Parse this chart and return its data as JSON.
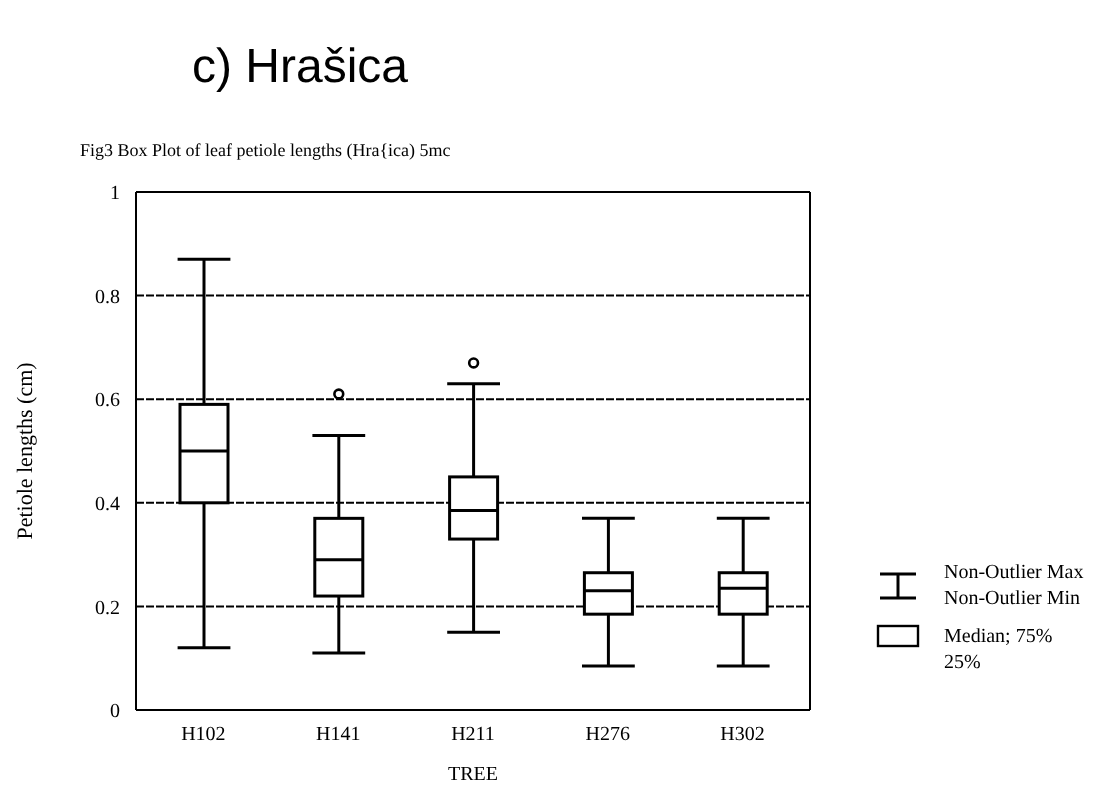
{
  "chart_data": {
    "type": "box",
    "title": "c) Hrašica",
    "subtitle": "Fig3  Box Plot of leaf petiole lengths (Hra{ica) 5mc",
    "xlabel": "TREE",
    "ylabel": "Petiole lengths (cm)",
    "categories": [
      "H102",
      "H141",
      "H211",
      "H276",
      "H302"
    ],
    "color": "#000000",
    "boxes": [
      {
        "low": 0.12,
        "q1": 0.4,
        "median": 0.5,
        "q3": 0.59,
        "high": 0.87
      },
      {
        "low": 0.11,
        "q1": 0.22,
        "median": 0.29,
        "q3": 0.37,
        "high": 0.53,
        "outliers": [
          0.61
        ]
      },
      {
        "low": 0.15,
        "q1": 0.33,
        "median": 0.385,
        "q3": 0.45,
        "high": 0.63,
        "outliers": [
          0.67
        ]
      },
      {
        "low": 0.085,
        "q1": 0.185,
        "median": 0.23,
        "q3": 0.265,
        "high": 0.37
      },
      {
        "low": 0.085,
        "q1": 0.185,
        "median": 0.235,
        "q3": 0.265,
        "high": 0.37
      }
    ],
    "ylim": [
      0,
      1
    ],
    "yticks": [
      0,
      0.2,
      0.4,
      0.6,
      0.8,
      1
    ],
    "grid": "y",
    "annotations": [
      "Non-Outlier Max",
      "Non-Outlier Min",
      "Median; 75%",
      "25%"
    ]
  }
}
